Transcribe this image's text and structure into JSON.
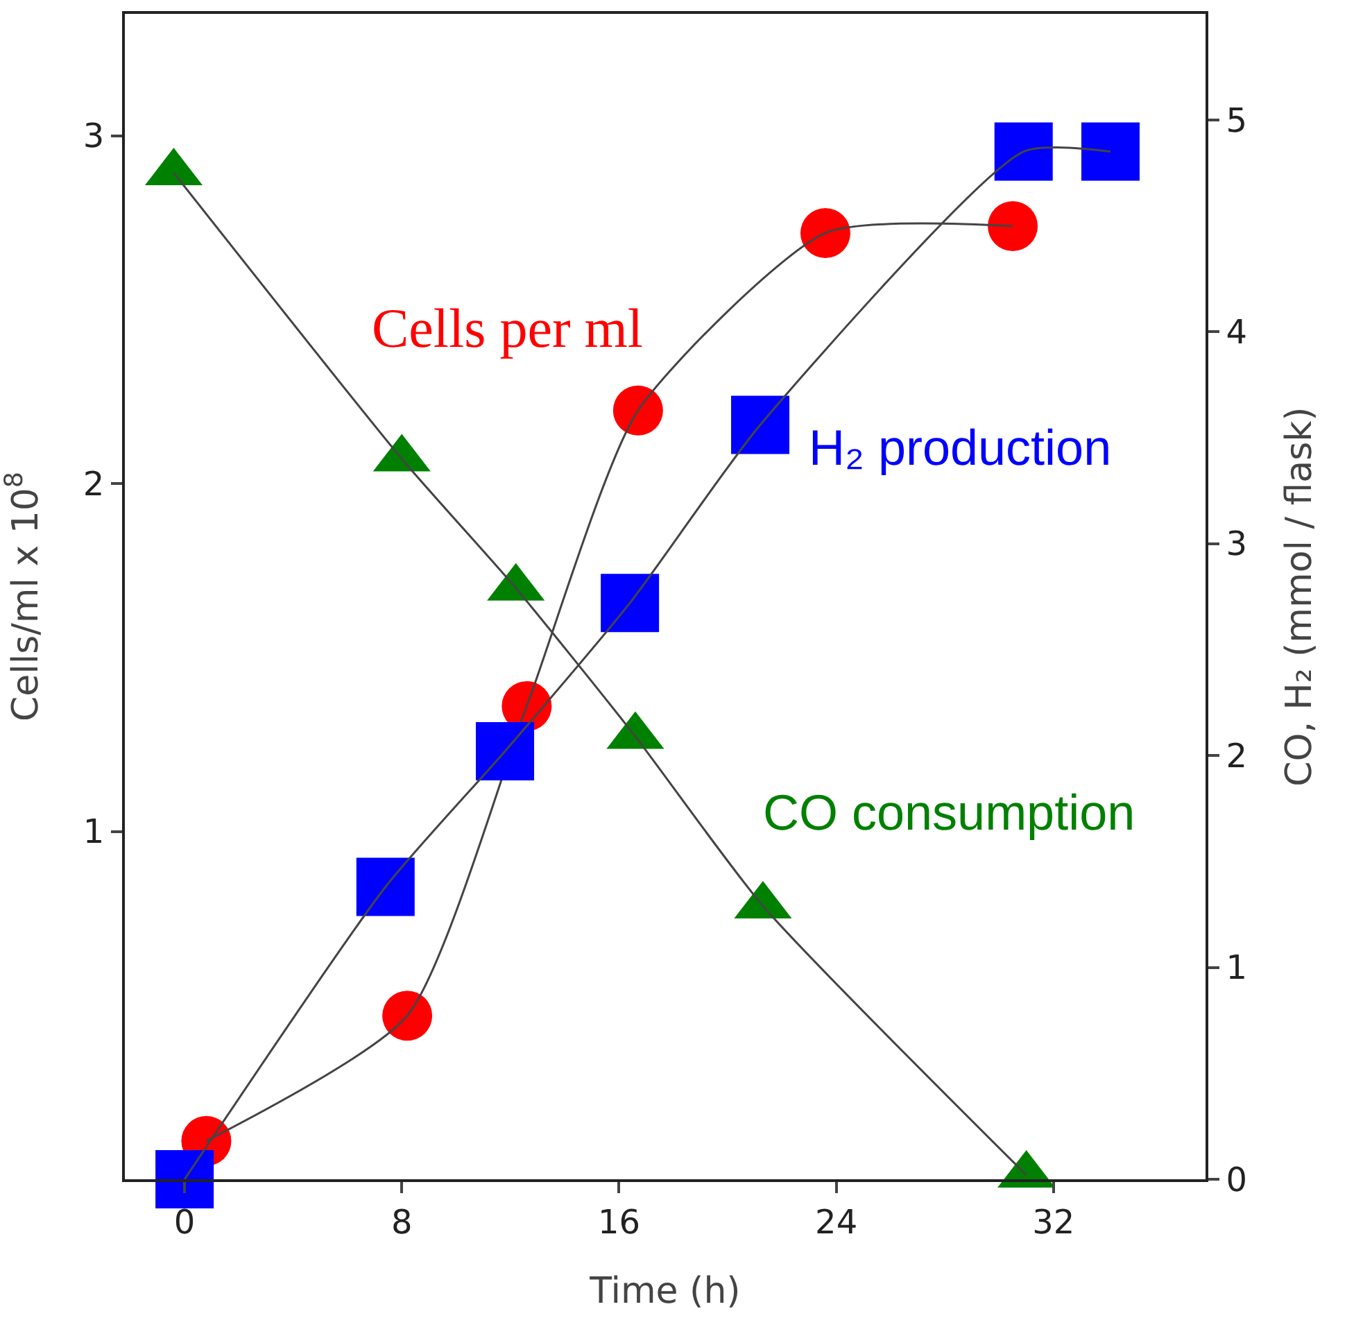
{
  "chart_data": {
    "type": "scatter",
    "xlabel": "Time (h)",
    "ylabel": "Cells/ml x 10$^{8}$",
    "y2label": "CO, H₂ (mmol / flask)",
    "xlim": [
      -2.2,
      37.6
    ],
    "xticks": [
      0,
      8,
      16,
      24,
      32
    ],
    "ylim": [
      0,
      3.35
    ],
    "yticks": [
      1,
      2,
      3
    ],
    "y2lim": [
      0,
      5.5
    ],
    "y2ticks": [
      0,
      1,
      2,
      3,
      4,
      5
    ],
    "grid": false,
    "legend": false,
    "line_style": "solid",
    "series": [
      {
        "name": "Cells per ml",
        "color": "#ff0000",
        "marker": "circle",
        "x": [
          0.8,
          8.2,
          12.6,
          16.7,
          23.6,
          30.5
        ],
        "values": [
          0.11,
          0.47,
          1.36,
          2.21,
          2.72,
          2.74
        ]
      },
      {
        "name": "H₂ production",
        "color": "#0000ff",
        "marker": "square",
        "axis": "y2",
        "x": [
          0,
          7.4,
          11.8,
          16.4,
          21.2,
          30.9,
          34.1
        ],
        "values": [
          0,
          1.38,
          2.02,
          2.72,
          3.56,
          4.85,
          4.85
        ]
      },
      {
        "name": "CO consumption",
        "color": "#008000",
        "marker": "triangle",
        "axis": "y2",
        "x": [
          -0.4,
          8.0,
          12.2,
          16.6,
          21.3,
          31.0
        ],
        "values": [
          4.75,
          3.4,
          2.79,
          2.09,
          1.29,
          0.02
        ]
      },
      {
        "type": "line",
        "color": "#444444",
        "marker": "none",
        "x": [
          0.8,
          8.2,
          12.6,
          16.7,
          23.6,
          30.5
        ],
        "values": [
          0.11,
          0.47,
          1.36,
          2.21,
          2.72,
          2.74
        ]
      },
      {
        "type": "line",
        "color": "#444444",
        "marker": "none",
        "axis": "y2",
        "x": [
          0,
          7.4,
          11.8,
          16.4,
          21.2,
          30.9,
          34.1
        ],
        "values": [
          0,
          1.38,
          2.02,
          2.72,
          3.56,
          4.85,
          4.85
        ]
      },
      {
        "type": "line",
        "color": "#444444",
        "marker": "none",
        "axis": "y2",
        "x": [
          -0.4,
          8.0,
          12.2,
          16.6,
          21.3,
          31.0
        ],
        "values": [
          4.75,
          3.4,
          2.79,
          2.09,
          1.29,
          0.02
        ]
      }
    ]
  }
}
